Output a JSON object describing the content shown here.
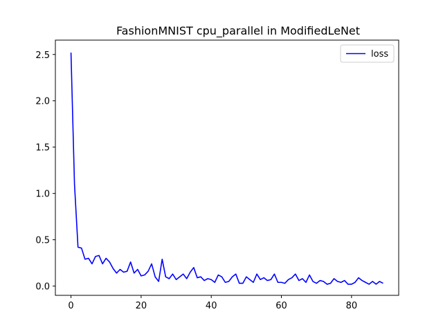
{
  "chart_data": {
    "type": "line",
    "title": "FashionMNIST cpu_parallel in ModifiedLeNet",
    "xlabel": "",
    "ylabel": "",
    "xlim": [
      -4.45,
      93.45
    ],
    "ylim": [
      -0.1,
      2.655
    ],
    "xticks": [
      0,
      20,
      40,
      60,
      80
    ],
    "yticks": [
      0.0,
      0.5,
      1.0,
      1.5,
      2.0,
      2.5
    ],
    "xtick_labels": [
      "0",
      "20",
      "40",
      "60",
      "80"
    ],
    "ytick_labels": [
      "0.0",
      "0.5",
      "1.0",
      "1.5",
      "2.0",
      "2.5"
    ],
    "grid": false,
    "legend_position": "top-right",
    "series": [
      {
        "name": "loss",
        "color": "#0000ff",
        "x": [
          0,
          1,
          2,
          3,
          4,
          5,
          6,
          7,
          8,
          9,
          10,
          11,
          12,
          13,
          14,
          15,
          16,
          17,
          18,
          19,
          20,
          21,
          22,
          23,
          24,
          25,
          26,
          27,
          28,
          29,
          30,
          31,
          32,
          33,
          34,
          35,
          36,
          37,
          38,
          39,
          40,
          41,
          42,
          43,
          44,
          45,
          46,
          47,
          48,
          49,
          50,
          51,
          52,
          53,
          54,
          55,
          56,
          57,
          58,
          59,
          60,
          61,
          62,
          63,
          64,
          65,
          66,
          67,
          68,
          69,
          70,
          71,
          72,
          73,
          74,
          75,
          76,
          77,
          78,
          79,
          80,
          81,
          82,
          83,
          84,
          85,
          86,
          87,
          88,
          89
        ],
        "values": [
          2.52,
          1.1,
          0.42,
          0.41,
          0.29,
          0.3,
          0.24,
          0.32,
          0.33,
          0.24,
          0.3,
          0.26,
          0.19,
          0.14,
          0.18,
          0.15,
          0.16,
          0.26,
          0.14,
          0.18,
          0.11,
          0.12,
          0.16,
          0.24,
          0.1,
          0.05,
          0.29,
          0.1,
          0.08,
          0.13,
          0.07,
          0.1,
          0.13,
          0.08,
          0.15,
          0.2,
          0.09,
          0.1,
          0.06,
          0.08,
          0.07,
          0.04,
          0.12,
          0.1,
          0.04,
          0.05,
          0.1,
          0.13,
          0.03,
          0.03,
          0.1,
          0.07,
          0.04,
          0.13,
          0.07,
          0.09,
          0.06,
          0.07,
          0.13,
          0.04,
          0.04,
          0.03,
          0.07,
          0.09,
          0.13,
          0.06,
          0.08,
          0.04,
          0.12,
          0.05,
          0.03,
          0.06,
          0.05,
          0.02,
          0.03,
          0.08,
          0.05,
          0.04,
          0.06,
          0.02,
          0.02,
          0.04,
          0.09,
          0.06,
          0.04,
          0.02,
          0.05,
          0.02,
          0.05,
          0.03
        ]
      }
    ]
  }
}
